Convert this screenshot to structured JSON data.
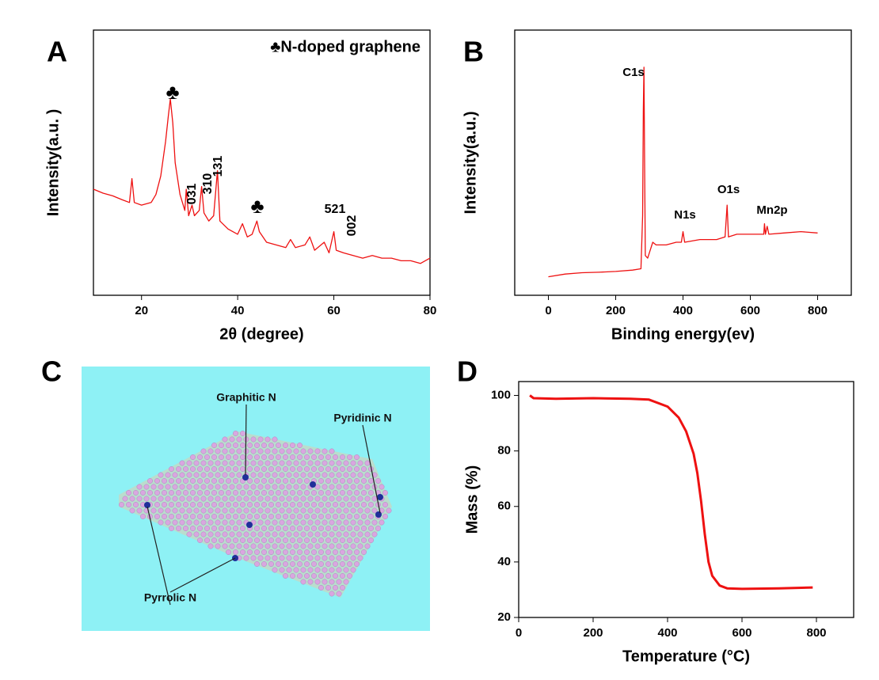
{
  "chart_data": [
    {
      "type": "line",
      "panel": "A",
      "xlabel": "2θ (degree)",
      "ylabel": "Intensity(a.u. )",
      "color": "#ee1111",
      "xlim": [
        10,
        80
      ],
      "xticks": [
        20,
        40,
        60,
        80
      ],
      "ylim": [
        0,
        100
      ],
      "legend": "♣N-doped graphene",
      "annotations": [
        "♣",
        "♣",
        "031",
        "310",
        "131",
        "521",
        "002"
      ],
      "x": [
        10,
        12,
        14,
        16,
        17.5,
        18,
        18.5,
        20,
        22,
        23,
        24,
        25,
        25.6,
        26,
        26.5,
        27,
        28,
        29,
        29.3,
        29.8,
        30.5,
        31,
        32,
        32.5,
        33,
        34,
        35,
        35.8,
        36.3,
        38,
        40,
        41,
        42,
        43,
        44,
        44.5,
        46,
        48,
        50,
        51,
        52,
        54,
        55,
        56,
        58,
        59,
        60,
        60.5,
        62,
        64,
        66,
        68,
        70,
        72,
        74,
        76,
        78,
        80
      ],
      "values": [
        40,
        38.5,
        37.5,
        36,
        35,
        44,
        35,
        34,
        35,
        38,
        45,
        58,
        68,
        74,
        65,
        50,
        38,
        32,
        40,
        30,
        34,
        30,
        32,
        41,
        31,
        28,
        30,
        47,
        28,
        25,
        23,
        27,
        22,
        23,
        28,
        24,
        20,
        19,
        18,
        21,
        18,
        19,
        22,
        17,
        20,
        16,
        24,
        17,
        16,
        15,
        14,
        15,
        14,
        14,
        13,
        13,
        12,
        14
      ]
    },
    {
      "type": "line",
      "panel": "B",
      "xlabel": "Binding energy(ev)",
      "ylabel": "Intensity(a.u.)",
      "color": "#ee1111",
      "xlim": [
        -100,
        900
      ],
      "xticks": [
        0,
        200,
        400,
        600,
        800
      ],
      "ylim": [
        0,
        100
      ],
      "annotations": [
        "C1s",
        "N1s",
        "O1s",
        "Mn2p"
      ],
      "x": [
        0,
        50,
        100,
        150,
        200,
        250,
        275,
        280,
        282,
        284,
        286,
        288,
        295,
        300,
        310,
        320,
        350,
        380,
        395,
        400,
        405,
        450,
        500,
        525,
        531,
        535,
        560,
        600,
        640,
        642,
        645,
        650,
        655,
        700,
        750,
        800
      ],
      "values": [
        7,
        8,
        8.5,
        8.7,
        9,
        9.5,
        10,
        30,
        70,
        86,
        50,
        15,
        14,
        16,
        20,
        19,
        19,
        20,
        20,
        24,
        20,
        21,
        21,
        22,
        34,
        22,
        23,
        23,
        23,
        27,
        23,
        26,
        23,
        23.5,
        24,
        23.5
      ]
    },
    {
      "type": "line",
      "panel": "D",
      "xlabel": "Temperature (°C)",
      "ylabel": "Mass (%)",
      "color": "#ee1111",
      "xlim": [
        0,
        900
      ],
      "xticks": [
        0,
        200,
        400,
        600,
        800
      ],
      "ylim": [
        20,
        105
      ],
      "yticks": [
        20,
        40,
        60,
        80,
        100
      ],
      "x": [
        30,
        40,
        100,
        200,
        300,
        350,
        400,
        430,
        450,
        470,
        480,
        490,
        500,
        510,
        520,
        540,
        560,
        600,
        700,
        790
      ],
      "values": [
        100,
        99,
        98.8,
        99,
        98.8,
        98.5,
        96,
        92,
        87,
        79,
        72,
        62,
        50,
        40,
        35,
        31.5,
        30.5,
        30.3,
        30.5,
        30.8
      ]
    }
  ],
  "panel_c": {
    "panel": "C",
    "labels": [
      "Graphitic N",
      "Pyridinic N",
      "Pyrrolic N"
    ]
  }
}
